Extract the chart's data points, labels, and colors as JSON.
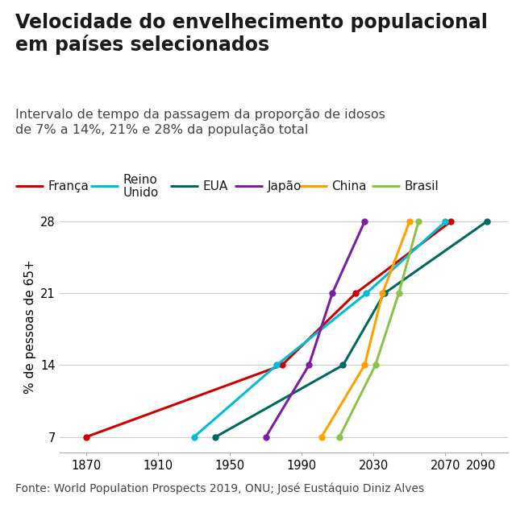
{
  "title": "Velocidade do envelhecimento populacional\nem países selecionados",
  "subtitle": "Intervalo de tempo da passagem da proporção de idosos\nde 7% a 14%, 21% e 28% da população total",
  "ylabel": "% de pessoas de 65+",
  "source": "Fonte: World Population Prospects 2019, ONU; José Eustáquio Diniz Alves",
  "xlim": [
    1855,
    2105
  ],
  "ylim": [
    5.5,
    30
  ],
  "yticks": [
    7,
    14,
    21,
    28
  ],
  "xticks": [
    1870,
    1910,
    1950,
    1990,
    2030,
    2070
  ],
  "extra_xtick": 2090,
  "series": [
    {
      "name": "França",
      "color": "#cc0000",
      "x": [
        1870,
        1979,
        2020,
        2073
      ],
      "y": [
        7,
        14,
        21,
        28
      ]
    },
    {
      "name": "Reino\nUnido",
      "color": "#00bcd4",
      "x": [
        1930,
        1976,
        2026,
        2070
      ],
      "y": [
        7,
        14,
        21,
        28
      ]
    },
    {
      "name": "EUA",
      "color": "#00695c",
      "x": [
        1942,
        2013,
        2036,
        2093
      ],
      "y": [
        7,
        14,
        21,
        28
      ]
    },
    {
      "name": "Japão",
      "color": "#7b1fa2",
      "x": [
        1970,
        1994,
        2007,
        2025
      ],
      "y": [
        7,
        14,
        21,
        28
      ]
    },
    {
      "name": "China",
      "color": "#ffa000",
      "x": [
        2001,
        2025,
        2035,
        2050
      ],
      "y": [
        7,
        14,
        21,
        28
      ]
    },
    {
      "name": "Brasil",
      "color": "#8bc34a",
      "x": [
        2011,
        2031,
        2044,
        2055
      ],
      "y": [
        7,
        14,
        21,
        28
      ]
    }
  ],
  "background_color": "#ffffff",
  "grid_color": "#cccccc",
  "title_fontsize": 17,
  "subtitle_fontsize": 11.5,
  "ylabel_fontsize": 11,
  "tick_fontsize": 10.5,
  "legend_fontsize": 11,
  "source_fontsize": 10
}
